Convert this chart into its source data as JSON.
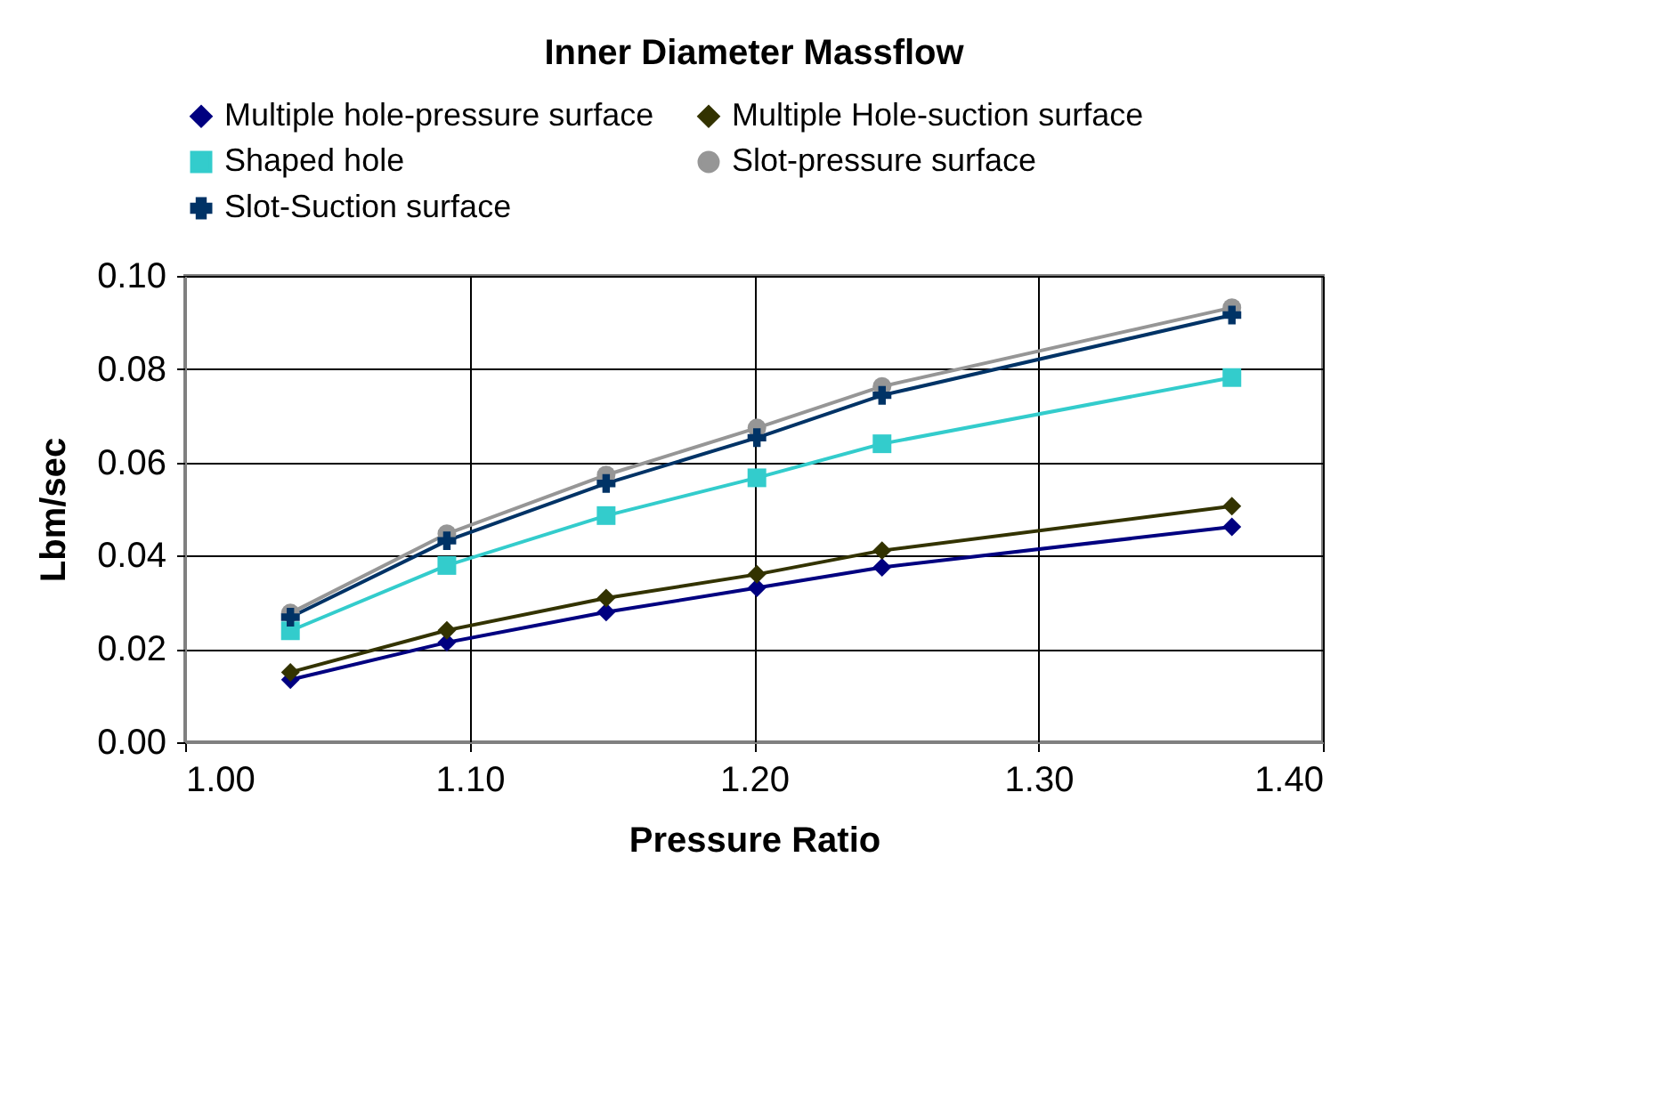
{
  "chart_data": {
    "type": "line",
    "title": "Inner Diameter Massflow",
    "xlabel": "Pressure Ratio",
    "ylabel": "Lbm/sec",
    "x": [
      1.037,
      1.092,
      1.148,
      1.201,
      1.245,
      1.368
    ],
    "series": [
      {
        "name": "Multiple hole-pressure surface",
        "color": "#000080",
        "marker": "diamond",
        "values": [
          0.0134,
          0.0214,
          0.0279,
          0.0331,
          0.0375,
          0.0462
        ]
      },
      {
        "name": "Multiple Hole-suction surface",
        "color": "#333300",
        "marker": "diamond",
        "values": [
          0.015,
          0.024,
          0.0309,
          0.036,
          0.0411,
          0.0506
        ]
      },
      {
        "name": "Shaped hole",
        "color": "#33cccc",
        "marker": "square",
        "values": [
          0.0239,
          0.0379,
          0.0486,
          0.0567,
          0.064,
          0.0782
        ]
      },
      {
        "name": "Slot-pressure surface",
        "color": "#969696",
        "marker": "circle",
        "values": [
          0.0277,
          0.0447,
          0.0573,
          0.0674,
          0.0763,
          0.0932
        ]
      },
      {
        "name": "Slot-Suction surface",
        "color": "#003366",
        "marker": "cross",
        "values": [
          0.0268,
          0.0432,
          0.0555,
          0.0653,
          0.0744,
          0.0916
        ]
      }
    ],
    "xlim": [
      1.0,
      1.4
    ],
    "xticks": [
      {
        "value": 1.0,
        "label": "1.00"
      },
      {
        "value": 1.1,
        "label": "1.10"
      },
      {
        "value": 1.2,
        "label": "1.20"
      },
      {
        "value": 1.3,
        "label": "1.30"
      },
      {
        "value": 1.4,
        "label": "1.40"
      }
    ],
    "ylim": [
      0,
      0.1
    ],
    "yticks": [
      {
        "value": 0,
        "label": "0.00"
      },
      {
        "value": 0.02,
        "label": "0.02"
      },
      {
        "value": 0.04,
        "label": "0.04"
      },
      {
        "value": 0.06,
        "label": "0.06"
      },
      {
        "value": 0.08,
        "label": "0.08"
      },
      {
        "value": 0.1,
        "label": "0.10"
      }
    ],
    "grid": true,
    "legend": "top"
  }
}
